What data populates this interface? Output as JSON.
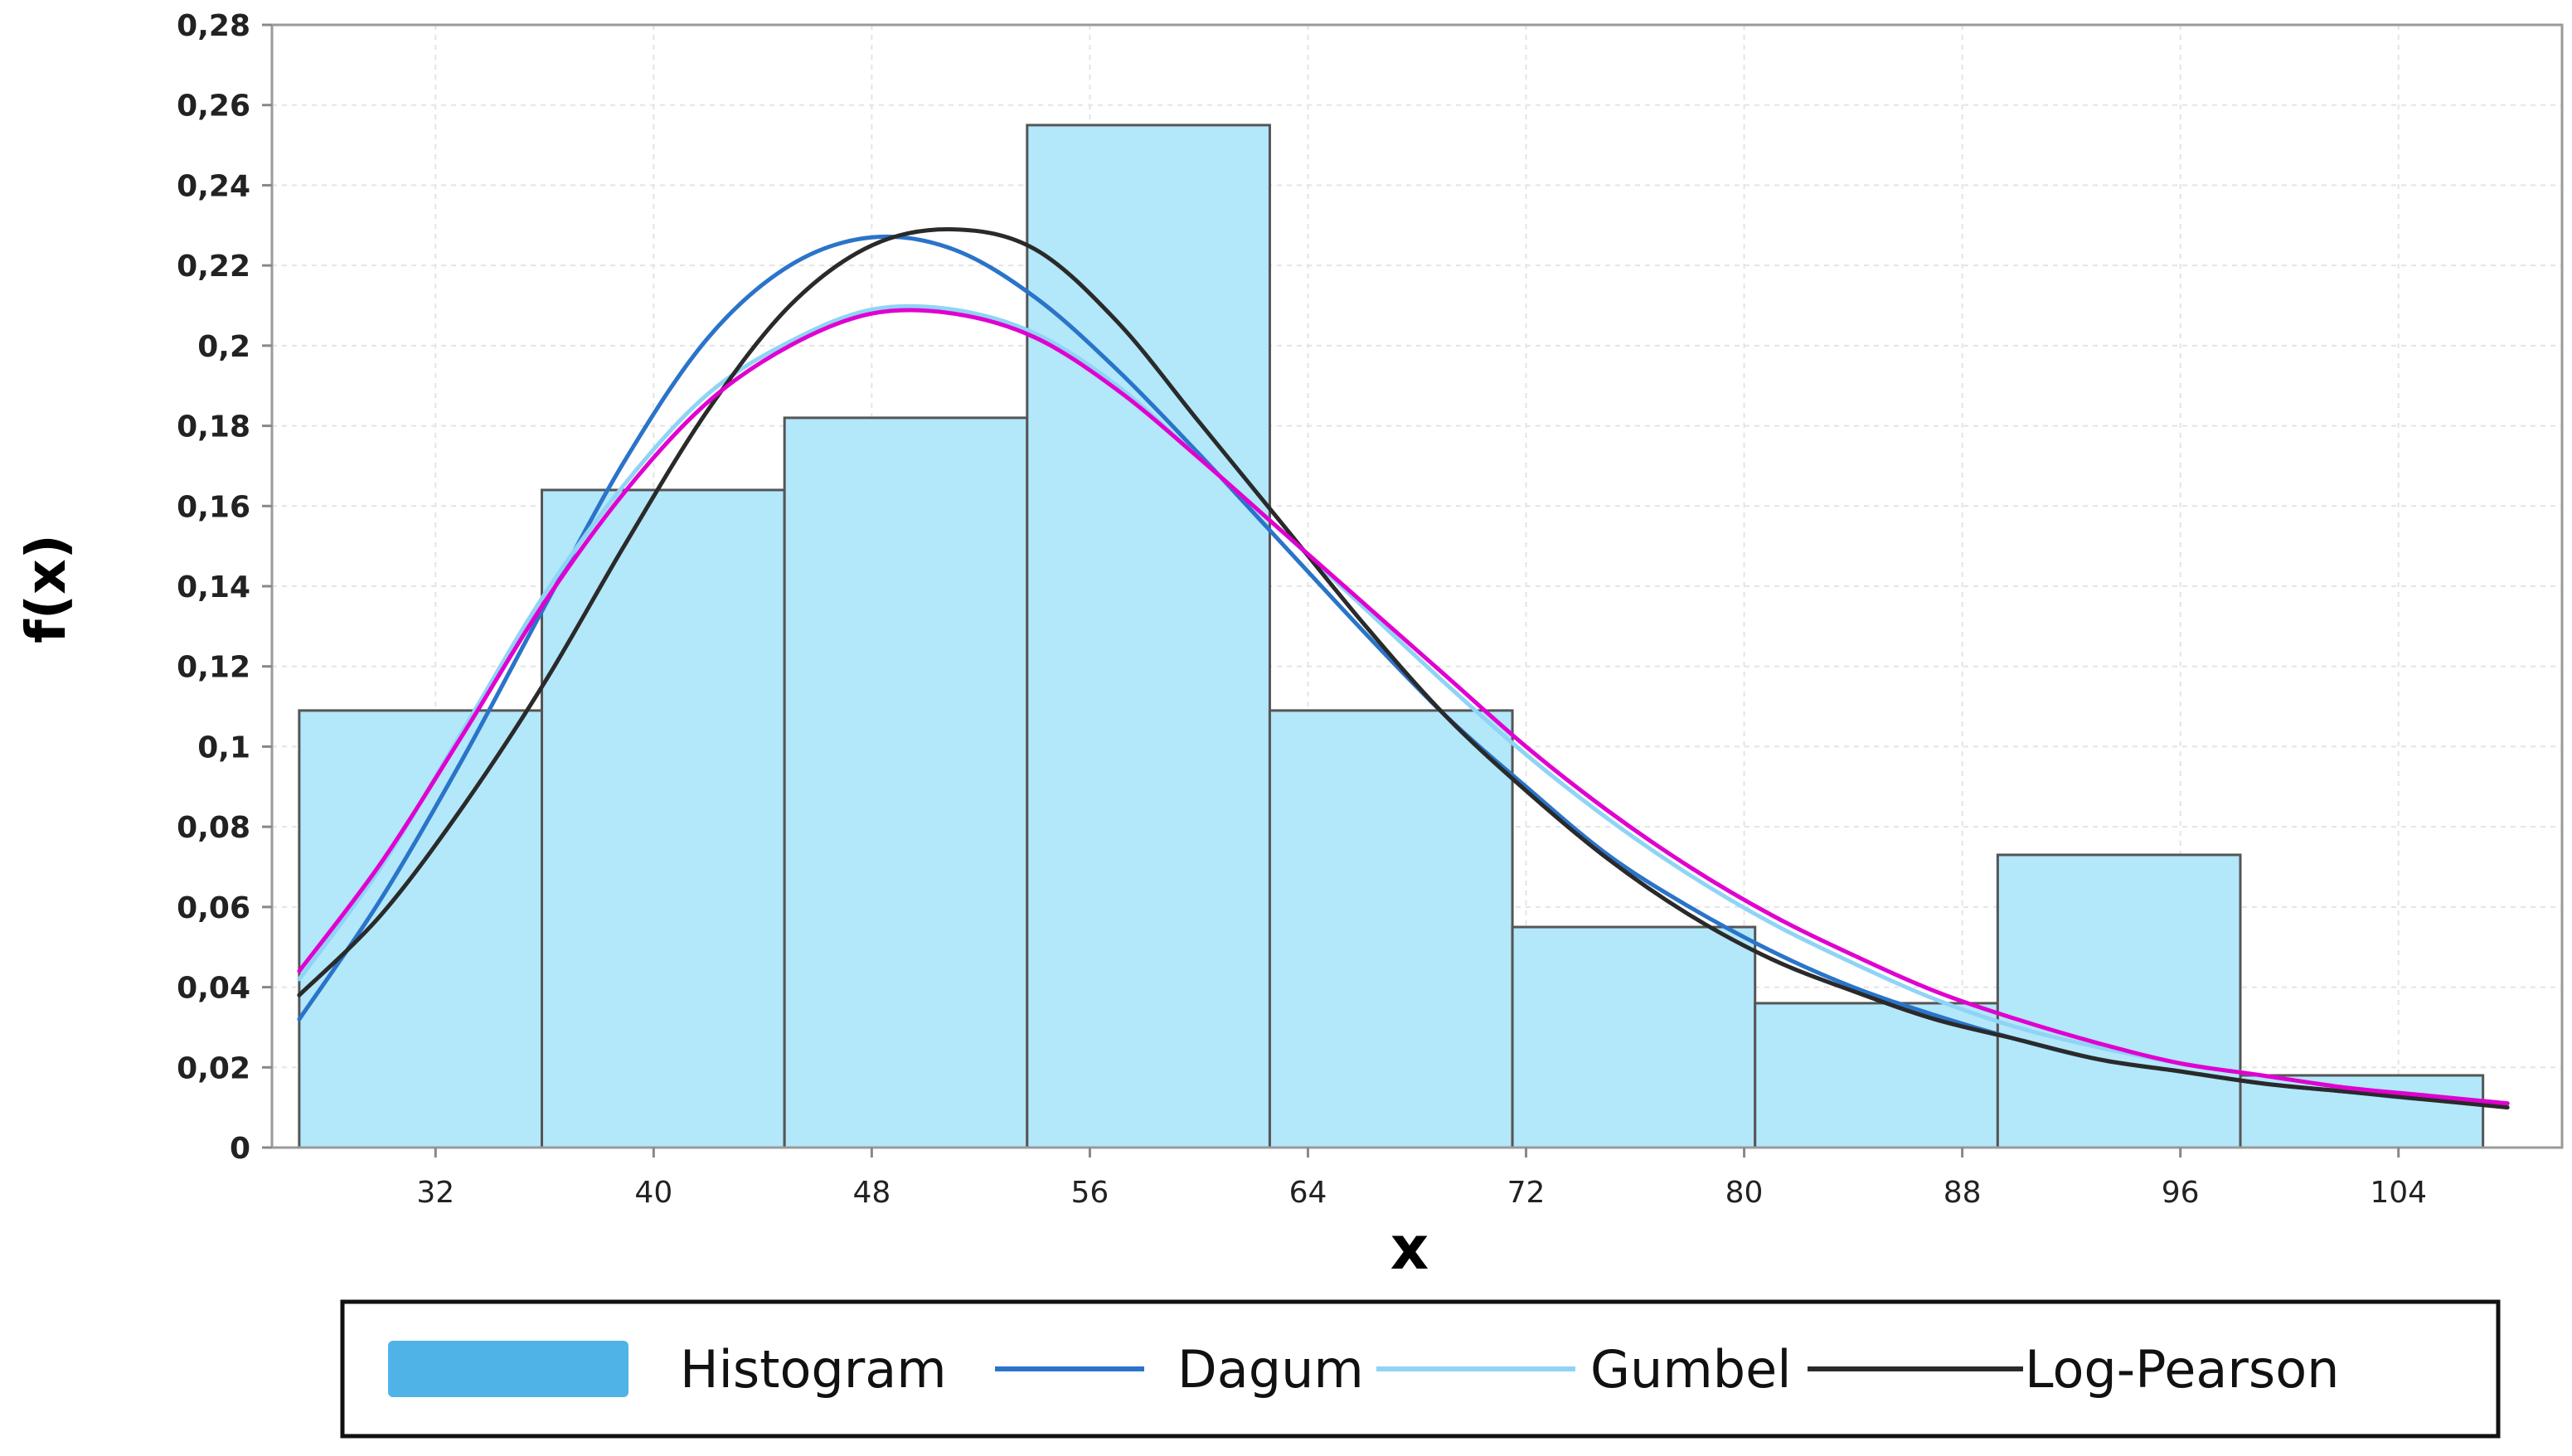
{
  "chart_data": {
    "type": "bar",
    "title": "",
    "xlabel": "x",
    "ylabel": "f(x)",
    "xlim": [
      26,
      110
    ],
    "ylim": [
      0,
      0.28
    ],
    "grid": true,
    "x_ticks": [
      {
        "value": 32,
        "label": "32"
      },
      {
        "value": 40,
        "label": "40"
      },
      {
        "value": 48,
        "label": "48"
      },
      {
        "value": 56,
        "label": "56"
      },
      {
        "value": 64,
        "label": "64"
      },
      {
        "value": 72,
        "label": "72"
      },
      {
        "value": 80,
        "label": "80"
      },
      {
        "value": 88,
        "label": "88"
      },
      {
        "value": 96,
        "label": "96"
      },
      {
        "value": 104,
        "label": "104"
      }
    ],
    "y_ticks": [
      {
        "value": 0,
        "label": "0"
      },
      {
        "value": 0.02,
        "label": "0,02"
      },
      {
        "value": 0.04,
        "label": "0,04"
      },
      {
        "value": 0.06,
        "label": "0,06"
      },
      {
        "value": 0.08,
        "label": "0,08"
      },
      {
        "value": 0.1,
        "label": "0,1"
      },
      {
        "value": 0.12,
        "label": "0,12"
      },
      {
        "value": 0.14,
        "label": "0,14"
      },
      {
        "value": 0.16,
        "label": "0,16"
      },
      {
        "value": 0.18,
        "label": "0,18"
      },
      {
        "value": 0.2,
        "label": "0,2"
      },
      {
        "value": 0.22,
        "label": "0,22"
      },
      {
        "value": 0.24,
        "label": "0,24"
      },
      {
        "value": 0.26,
        "label": "0,26"
      },
      {
        "value": 0.28,
        "label": "0,28"
      }
    ],
    "histogram": {
      "name": "Histogram",
      "color": "#b3e7fa",
      "legend_color": "#4fb3e8",
      "edge_color": "#555555",
      "bins": [
        {
          "x0": 27.0,
          "x1": 35.9,
          "value": 0.109
        },
        {
          "x0": 35.9,
          "x1": 44.8,
          "value": 0.164
        },
        {
          "x0": 44.8,
          "x1": 53.7,
          "value": 0.182
        },
        {
          "x0": 53.7,
          "x1": 62.6,
          "value": 0.255
        },
        {
          "x0": 62.6,
          "x1": 71.5,
          "value": 0.109
        },
        {
          "x0": 71.5,
          "x1": 80.4,
          "value": 0.055
        },
        {
          "x0": 80.4,
          "x1": 89.3,
          "value": 0.036
        },
        {
          "x0": 89.3,
          "x1": 98.2,
          "value": 0.073
        },
        {
          "x0": 98.2,
          "x1": 107.1,
          "value": 0.018
        }
      ]
    },
    "series": [
      {
        "name": "Dagum",
        "color": "#2a74c9",
        "x": [
          27,
          30,
          33,
          36,
          39,
          42,
          45,
          48,
          51,
          54,
          57,
          60,
          63,
          66,
          69,
          72,
          75,
          78,
          81,
          84,
          87,
          90,
          93,
          96,
          99,
          102,
          105,
          108
        ],
        "y": [
          0.032,
          0.062,
          0.097,
          0.135,
          0.172,
          0.202,
          0.22,
          0.227,
          0.224,
          0.212,
          0.194,
          0.173,
          0.151,
          0.129,
          0.108,
          0.09,
          0.073,
          0.06,
          0.049,
          0.04,
          0.033,
          0.027,
          0.022,
          0.019,
          0.016,
          0.014,
          0.012,
          0.011
        ]
      },
      {
        "name": "Gumbel",
        "color": "#8fd4f5",
        "x": [
          27,
          30,
          33,
          36,
          39,
          42,
          45,
          48,
          51,
          54,
          57,
          60,
          63,
          66,
          69,
          72,
          75,
          78,
          81,
          84,
          87,
          90,
          93,
          96,
          99,
          102,
          105,
          108
        ],
        "y": [
          0.042,
          0.07,
          0.104,
          0.138,
          0.166,
          0.188,
          0.201,
          0.209,
          0.209,
          0.203,
          0.19,
          0.172,
          0.154,
          0.135,
          0.116,
          0.098,
          0.082,
          0.068,
          0.056,
          0.046,
          0.037,
          0.03,
          0.025,
          0.021,
          0.018,
          0.015,
          0.013,
          0.011
        ]
      },
      {
        "name": "Log-Pearson",
        "color": "#2a2a2a",
        "x": [
          27,
          30,
          33,
          36,
          39,
          42,
          45,
          48,
          51,
          54,
          57,
          60,
          63,
          66,
          69,
          72,
          75,
          78,
          81,
          84,
          87,
          90,
          93,
          96,
          99,
          102,
          105,
          108
        ],
        "y": [
          0.038,
          0.058,
          0.085,
          0.116,
          0.151,
          0.184,
          0.21,
          0.225,
          0.229,
          0.224,
          0.206,
          0.181,
          0.156,
          0.131,
          0.108,
          0.089,
          0.072,
          0.058,
          0.047,
          0.039,
          0.032,
          0.027,
          0.022,
          0.019,
          0.016,
          0.014,
          0.012,
          0.01
        ]
      },
      {
        "color": "#e000d0",
        "x": [
          27,
          30,
          33,
          36,
          39,
          42,
          45,
          48,
          51,
          54,
          57,
          60,
          63,
          66,
          69,
          72,
          75,
          78,
          81,
          84,
          87,
          90,
          93,
          96,
          99,
          102,
          105,
          108
        ],
        "y": [
          0.044,
          0.071,
          0.103,
          0.136,
          0.164,
          0.186,
          0.2,
          0.208,
          0.208,
          0.202,
          0.189,
          0.172,
          0.154,
          0.136,
          0.118,
          0.1,
          0.084,
          0.07,
          0.058,
          0.048,
          0.039,
          0.032,
          0.026,
          0.021,
          0.018,
          0.015,
          0.013,
          0.011
        ]
      }
    ],
    "legend": {
      "position": "bottom",
      "entries": [
        {
          "label": "Histogram",
          "kind": "patch",
          "color": "#4fb3e8"
        },
        {
          "label": "Dagum",
          "kind": "line",
          "color": "#2a74c9"
        },
        {
          "label": "Gumbel",
          "kind": "line",
          "color": "#8fd4f5"
        },
        {
          "label": "Log-Pearson",
          "kind": "line",
          "color": "#2a2a2a"
        }
      ]
    }
  }
}
